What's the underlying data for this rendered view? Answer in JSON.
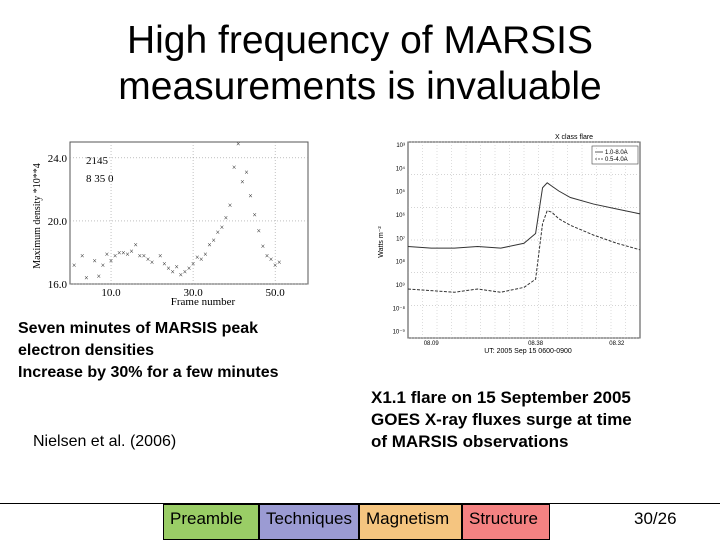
{
  "slide": {
    "title_line1": "High frequency of MARSIS",
    "title_line2": "measurements is invaluable",
    "caption_left": [
      "Seven minutes of MARSIS peak",
      "electron densities",
      "Increase by 30% for a few minutes"
    ],
    "citation": "Nielsen et al. (2006)",
    "caption_right": [
      "X1.1 flare on 15 September 2005",
      "GOES X-ray fluxes surge at time",
      "of MARSIS observations"
    ],
    "page_number": "30/26"
  },
  "nav": [
    {
      "label": "Preamble",
      "color": "#9acd66"
    },
    {
      "label": "Techniques",
      "color": "#9b9bd3"
    },
    {
      "label": "Magnetism",
      "color": "#f5c580"
    },
    {
      "label": "Structure",
      "color": "#f48282"
    }
  ],
  "chart_data": [
    {
      "type": "scatter",
      "xlabel": "Frame number",
      "ylabel": "Maximum density *10**4",
      "annotation_line1": "2145",
      "annotation_line2": "8   35   0",
      "x_ticks": [
        "10.0",
        "30.0",
        "50.0"
      ],
      "y_ticks": [
        "16.0",
        "20.0",
        "24.0"
      ],
      "xlim": [
        0,
        58
      ],
      "ylim": [
        16,
        25
      ],
      "x": [
        1,
        3,
        4,
        6,
        7,
        8,
        9,
        10,
        11,
        12,
        13,
        14,
        15,
        16,
        17,
        18,
        19,
        20,
        22,
        23,
        24,
        25,
        26,
        27,
        28,
        29,
        30,
        31,
        32,
        33,
        34,
        35,
        36,
        37,
        38,
        39,
        40,
        41,
        42,
        43,
        44,
        45,
        46,
        47,
        48,
        49,
        50,
        51
      ],
      "y": [
        17.2,
        17.8,
        16.4,
        17.5,
        16.5,
        17.2,
        17.9,
        17.5,
        17.8,
        18.0,
        18.0,
        17.9,
        18.1,
        18.5,
        17.8,
        17.8,
        17.6,
        17.4,
        17.8,
        17.3,
        17.0,
        16.8,
        17.1,
        16.6,
        16.8,
        17.0,
        17.3,
        17.7,
        17.6,
        17.9,
        18.5,
        18.8,
        19.3,
        19.6,
        20.2,
        21.0,
        23.4,
        24.9,
        22.5,
        23.1,
        21.6,
        20.4,
        19.4,
        18.4,
        17.8,
        17.6,
        17.2,
        17.4
      ]
    },
    {
      "type": "line",
      "title": "X class flare",
      "ylabel": "Watts m⁻²",
      "xlabel": "UT: 2005 Sep 15 0600-0900",
      "x_ticks": [
        "08.09",
        "08.38",
        "08.32"
      ],
      "y_ticks": [
        "10³",
        "10⁴",
        "10⁵",
        "10⁶",
        "10⁷",
        "10⁸",
        "10⁹",
        "10⁻⁸",
        "10⁻⁹"
      ],
      "legend": [
        "1.0-8.0A",
        "0.5-4.0A"
      ],
      "legend_position": "top-right",
      "xlim": [
        0,
        100
      ],
      "ylim": [
        -9,
        -3
      ],
      "series": [
        {
          "name": "1.0-8.0A",
          "x": [
            0,
            10,
            20,
            30,
            40,
            50,
            55,
            58,
            60,
            62,
            65,
            70,
            80,
            90,
            100
          ],
          "values": [
            -6.2,
            -6.25,
            -6.25,
            -6.2,
            -6.25,
            -6.1,
            -5.8,
            -4.4,
            -4.25,
            -4.35,
            -4.5,
            -4.7,
            -4.9,
            -5.05,
            -5.2
          ]
        },
        {
          "name": "0.5-4.0A",
          "x": [
            0,
            10,
            20,
            30,
            40,
            50,
            55,
            58,
            60,
            62,
            65,
            70,
            80,
            90,
            100
          ],
          "values": [
            -7.5,
            -7.55,
            -7.6,
            -7.5,
            -7.6,
            -7.45,
            -7.2,
            -5.5,
            -5.1,
            -5.15,
            -5.35,
            -5.55,
            -5.85,
            -6.1,
            -6.3
          ]
        }
      ]
    }
  ]
}
